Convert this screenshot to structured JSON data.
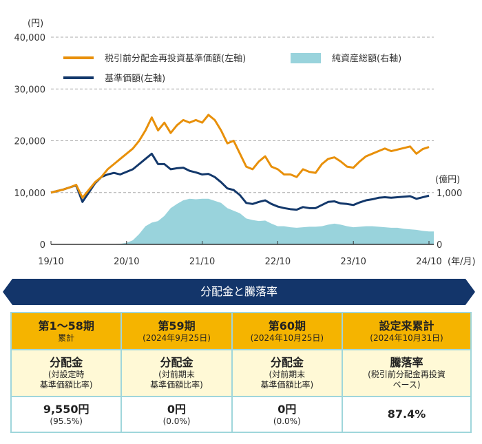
{
  "chart_data": {
    "type": "line",
    "left_axis_unit": "(円)",
    "right_axis_unit": "(億円)",
    "x_unit": "(年/月)",
    "left_ylim": [
      0,
      40000
    ],
    "right_ylim": [
      0,
      4000
    ],
    "left_ticks": [
      "0",
      "10,000",
      "20,000",
      "30,000",
      "40,000"
    ],
    "right_ticks": [
      "0",
      "1,000"
    ],
    "x_ticks": [
      "19/10",
      "20/10",
      "21/10",
      "22/10",
      "23/10",
      "24/10"
    ],
    "grid": "dashed horizontal",
    "legend": "top",
    "x": [
      "19/10",
      "19/11",
      "19/12",
      "20/01",
      "20/02",
      "20/03",
      "20/04",
      "20/05",
      "20/06",
      "20/07",
      "20/08",
      "20/09",
      "20/10",
      "20/11",
      "20/12",
      "21/01",
      "21/02",
      "21/03",
      "21/04",
      "21/05",
      "21/06",
      "21/07",
      "21/08",
      "21/09",
      "21/10",
      "21/11",
      "21/12",
      "22/01",
      "22/02",
      "22/03",
      "22/04",
      "22/05",
      "22/06",
      "22/07",
      "22/08",
      "22/09",
      "22/10",
      "22/11",
      "22/12",
      "23/01",
      "23/02",
      "23/03",
      "23/04",
      "23/05",
      "23/06",
      "23/07",
      "23/08",
      "23/09",
      "23/10",
      "23/11",
      "23/12",
      "24/01",
      "24/02",
      "24/03",
      "24/04",
      "24/05",
      "24/06",
      "24/07",
      "24/08",
      "24/09",
      "24/10"
    ],
    "series": [
      {
        "name": "税引前分配金再投資基準価額(左軸)",
        "axis": "left",
        "color": "#e8900a",
        "values": [
          10000,
          10300,
          10600,
          11000,
          11500,
          9000,
          10500,
          12000,
          13000,
          14500,
          15500,
          16500,
          17500,
          18500,
          20000,
          22000,
          24500,
          22000,
          23500,
          21500,
          23000,
          24000,
          23500,
          24000,
          23500,
          25000,
          24000,
          22000,
          19500,
          20000,
          17500,
          15000,
          14500,
          16000,
          17000,
          15000,
          14500,
          13500,
          13500,
          13000,
          14500,
          14000,
          13800,
          15500,
          16500,
          16800,
          16000,
          15000,
          14800,
          16000,
          17000,
          17500,
          18000,
          18500,
          18000,
          18300,
          18600,
          18900,
          17500,
          18400,
          18800
        ]
      },
      {
        "name": "基準価額(左軸)",
        "axis": "left",
        "color": "#13386b",
        "values": [
          10000,
          10300,
          10600,
          11000,
          11400,
          8200,
          10000,
          11800,
          13000,
          13500,
          13800,
          13500,
          14000,
          14500,
          15500,
          16500,
          17500,
          15500,
          15500,
          14500,
          14700,
          14800,
          14200,
          13900,
          13500,
          13600,
          13000,
          12000,
          10800,
          10500,
          9500,
          8000,
          7800,
          8200,
          8500,
          7800,
          7300,
          7000,
          6800,
          6700,
          7200,
          7000,
          7000,
          7600,
          8200,
          8300,
          7900,
          7800,
          7600,
          8100,
          8500,
          8700,
          9000,
          9100,
          9000,
          9100,
          9200,
          9300,
          8800,
          9100,
          9400
        ]
      },
      {
        "name": "純資産総額(右軸)",
        "axis": "right",
        "type": "area",
        "color": "#99d3dc",
        "values": [
          0,
          0,
          0,
          0,
          0,
          0,
          0,
          0,
          0,
          2,
          5,
          10,
          30,
          80,
          200,
          350,
          420,
          450,
          550,
          700,
          780,
          850,
          880,
          870,
          880,
          880,
          840,
          800,
          700,
          650,
          600,
          500,
          470,
          450,
          460,
          400,
          350,
          350,
          330,
          320,
          330,
          340,
          340,
          350,
          380,
          400,
          380,
          350,
          330,
          340,
          350,
          350,
          340,
          330,
          320,
          320,
          300,
          290,
          280,
          260,
          250
        ]
      }
    ]
  },
  "banner": {
    "title": "分配金と騰落率"
  },
  "table": {
    "columns": [
      {
        "head": "第1〜58期",
        "sub": "累計",
        "metric": "分配金",
        "note1": "(対設定時",
        "note2": "基準価額比率)",
        "value": "9,550円",
        "value_sub": "(95.5%)"
      },
      {
        "head": "第59期",
        "sub": "(2024年9月25日)",
        "metric": "分配金",
        "note1": "(対前期末",
        "note2": "基準価額比率)",
        "value": "0円",
        "value_sub": "(0.0%)"
      },
      {
        "head": "第60期",
        "sub": "(2024年10月25日)",
        "metric": "分配金",
        "note1": "(対前期末",
        "note2": "基準価額比率)",
        "value": "0円",
        "value_sub": "(0.0%)"
      },
      {
        "head": "設定来累計",
        "sub": "(2024年10月31日)",
        "metric": "騰落率",
        "note1": "(税引前分配金再投資",
        "note2": "ベース)",
        "value": "87.4%",
        "value_sub": ""
      }
    ]
  }
}
